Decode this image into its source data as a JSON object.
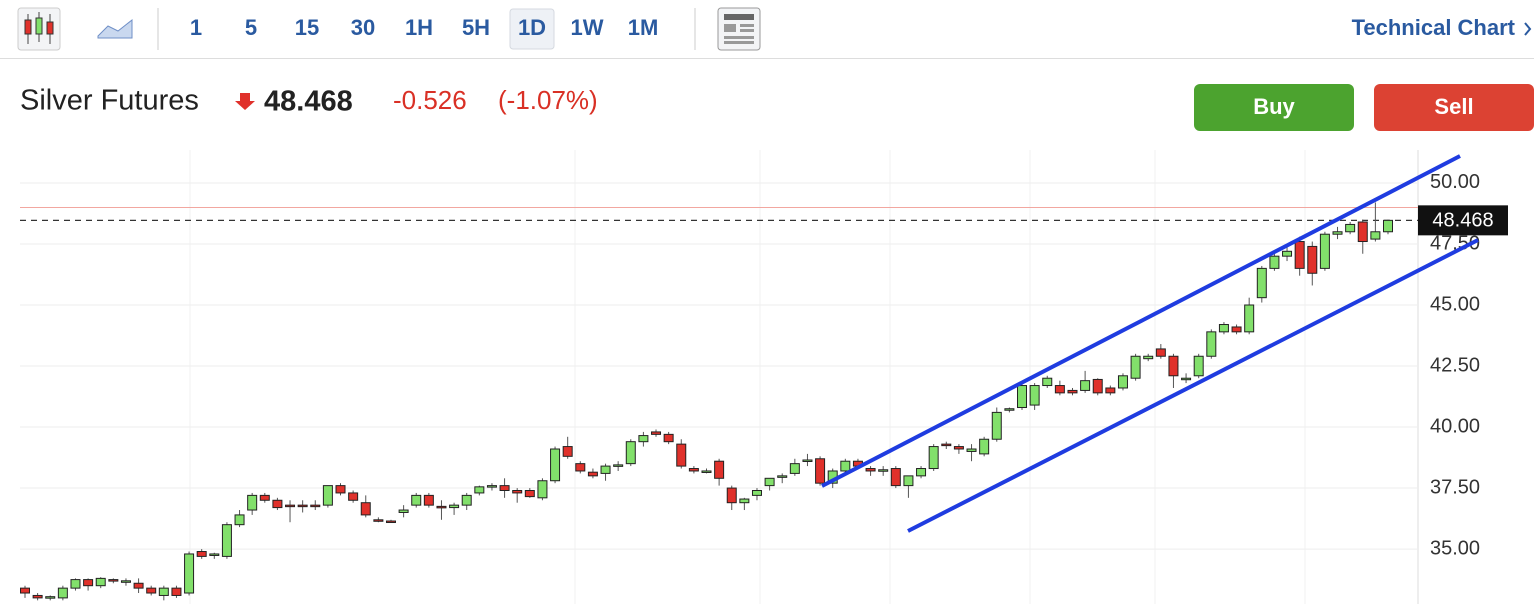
{
  "toolbar": {
    "intervals": [
      "1",
      "5",
      "15",
      "30",
      "1H",
      "5H",
      "1D",
      "1W",
      "1M"
    ],
    "link": "Technical Chart"
  },
  "header": {
    "title": "Silver Futures",
    "price": "48.468",
    "change": "-0.526",
    "change_percent": "(-1.07%)"
  },
  "buttons": {
    "buy": "Buy",
    "sell": "Sell"
  },
  "chart_data": {
    "type": "candlestick",
    "ylim": [
      32.75,
      51.35
    ],
    "yticks": [
      {
        "value": 35,
        "label": "35.00"
      },
      {
        "value": 37.5,
        "label": "37.50"
      },
      {
        "value": 40,
        "label": "40.00"
      },
      {
        "value": 42.5,
        "label": "42.50"
      },
      {
        "value": 45,
        "label": "45.00"
      },
      {
        "value": 47.5,
        "label": "47.50"
      },
      {
        "value": 50,
        "label": "50.00"
      }
    ],
    "grid": true,
    "up_color": "#82e06b",
    "down_color": "#e0312b",
    "last_price": 48.468,
    "previous_close": 48.994,
    "ohlc": [
      [
        33.4,
        33.5,
        33.0,
        33.2
      ],
      [
        33.1,
        33.2,
        32.9,
        33.0
      ],
      [
        33.0,
        33.1,
        32.9,
        33.05
      ],
      [
        33.0,
        33.5,
        32.9,
        33.4
      ],
      [
        33.4,
        33.8,
        33.3,
        33.75
      ],
      [
        33.75,
        33.8,
        33.3,
        33.5
      ],
      [
        33.5,
        33.85,
        33.4,
        33.8
      ],
      [
        33.75,
        33.8,
        33.6,
        33.7
      ],
      [
        33.7,
        33.8,
        33.5,
        33.7
      ],
      [
        33.6,
        33.8,
        33.2,
        33.4
      ],
      [
        33.4,
        33.5,
        33.1,
        33.2
      ],
      [
        33.1,
        33.5,
        32.9,
        33.4
      ],
      [
        33.4,
        33.5,
        33.0,
        33.1
      ],
      [
        33.2,
        34.9,
        33.1,
        34.8
      ],
      [
        34.9,
        35.0,
        34.6,
        34.7
      ],
      [
        34.75,
        34.85,
        34.6,
        34.8
      ],
      [
        34.7,
        36.1,
        34.6,
        36.0
      ],
      [
        36.0,
        36.6,
        35.9,
        36.4
      ],
      [
        36.6,
        37.3,
        36.4,
        37.2
      ],
      [
        37.2,
        37.3,
        36.9,
        37.0
      ],
      [
        37.0,
        37.1,
        36.6,
        36.7
      ],
      [
        36.8,
        37.0,
        36.1,
        36.75
      ],
      [
        36.8,
        37.0,
        36.5,
        36.75
      ],
      [
        36.8,
        37.0,
        36.6,
        36.75
      ],
      [
        36.8,
        37.6,
        36.7,
        37.6
      ],
      [
        37.6,
        37.7,
        37.2,
        37.3
      ],
      [
        37.3,
        37.4,
        36.9,
        37.0
      ],
      [
        36.9,
        37.2,
        36.3,
        36.4
      ],
      [
        36.2,
        36.3,
        36.1,
        36.15
      ],
      [
        36.15,
        36.2,
        36.1,
        36.1
      ],
      [
        36.5,
        36.8,
        36.3,
        36.6
      ],
      [
        36.8,
        37.3,
        36.7,
        37.2
      ],
      [
        37.2,
        37.3,
        36.7,
        36.8
      ],
      [
        36.75,
        37.0,
        36.2,
        36.7
      ],
      [
        36.7,
        36.9,
        36.4,
        36.8
      ],
      [
        36.8,
        37.3,
        36.6,
        37.2
      ],
      [
        37.3,
        37.6,
        37.2,
        37.55
      ],
      [
        37.55,
        37.7,
        37.4,
        37.6
      ],
      [
        37.6,
        37.9,
        37.1,
        37.4
      ],
      [
        37.4,
        37.5,
        36.9,
        37.3
      ],
      [
        37.4,
        37.5,
        37.1,
        37.15
      ],
      [
        37.1,
        37.9,
        37.0,
        37.8
      ],
      [
        37.8,
        39.2,
        37.7,
        39.1
      ],
      [
        39.2,
        39.6,
        38.7,
        38.8
      ],
      [
        38.5,
        38.6,
        38.1,
        38.2
      ],
      [
        38.15,
        38.3,
        37.9,
        38.0
      ],
      [
        38.1,
        38.5,
        37.8,
        38.4
      ],
      [
        38.4,
        38.6,
        38.2,
        38.45
      ],
      [
        38.5,
        39.5,
        38.4,
        39.4
      ],
      [
        39.4,
        39.8,
        39.2,
        39.65
      ],
      [
        39.8,
        39.9,
        39.6,
        39.7
      ],
      [
        39.7,
        39.8,
        39.3,
        39.4
      ],
      [
        39.3,
        39.5,
        38.3,
        38.4
      ],
      [
        38.3,
        38.4,
        38.1,
        38.2
      ],
      [
        38.2,
        38.3,
        38.1,
        38.2
      ],
      [
        38.6,
        38.7,
        37.6,
        37.9
      ],
      [
        37.5,
        37.6,
        36.6,
        36.9
      ],
      [
        36.9,
        37.1,
        36.6,
        37.05
      ],
      [
        37.2,
        37.5,
        37.0,
        37.4
      ],
      [
        37.6,
        37.9,
        37.4,
        37.9
      ],
      [
        37.95,
        38.1,
        37.7,
        38.0
      ],
      [
        38.1,
        38.7,
        38.0,
        38.5
      ],
      [
        38.6,
        38.9,
        38.4,
        38.65
      ],
      [
        38.7,
        38.8,
        37.6,
        37.7
      ],
      [
        37.7,
        38.3,
        37.5,
        38.2
      ],
      [
        38.2,
        38.7,
        38.1,
        38.6
      ],
      [
        38.6,
        38.7,
        38.3,
        38.4
      ],
      [
        38.3,
        38.4,
        38.0,
        38.2
      ],
      [
        38.2,
        38.4,
        38.0,
        38.25
      ],
      [
        38.3,
        38.4,
        37.5,
        37.6
      ],
      [
        37.6,
        38.0,
        37.1,
        38.0
      ],
      [
        38.0,
        38.4,
        37.9,
        38.3
      ],
      [
        38.3,
        39.3,
        38.2,
        39.2
      ],
      [
        39.3,
        39.4,
        39.1,
        39.25
      ],
      [
        39.2,
        39.3,
        38.9,
        39.1
      ],
      [
        39.0,
        39.3,
        38.6,
        39.1
      ],
      [
        38.9,
        39.6,
        38.8,
        39.5
      ],
      [
        39.5,
        40.8,
        39.4,
        40.6
      ],
      [
        40.7,
        40.8,
        40.6,
        40.75
      ],
      [
        40.8,
        41.8,
        40.7,
        41.7
      ],
      [
        40.9,
        41.8,
        40.7,
        41.7
      ],
      [
        41.7,
        42.1,
        41.6,
        42.0
      ],
      [
        41.7,
        41.9,
        41.3,
        41.4
      ],
      [
        41.5,
        41.6,
        41.3,
        41.4
      ],
      [
        41.5,
        42.3,
        41.4,
        41.9
      ],
      [
        41.95,
        42.0,
        41.3,
        41.4
      ],
      [
        41.6,
        41.7,
        41.3,
        41.4
      ],
      [
        41.6,
        42.2,
        41.5,
        42.1
      ],
      [
        42.0,
        43.0,
        41.9,
        42.9
      ],
      [
        42.8,
        43.0,
        42.7,
        42.9
      ],
      [
        43.2,
        43.4,
        42.8,
        42.9
      ],
      [
        42.9,
        43.0,
        41.6,
        42.1
      ],
      [
        42.0,
        42.2,
        41.8,
        42.0
      ],
      [
        42.1,
        43.0,
        42.0,
        42.9
      ],
      [
        42.9,
        44.0,
        42.8,
        43.9
      ],
      [
        43.9,
        44.3,
        43.8,
        44.2
      ],
      [
        44.1,
        44.2,
        43.8,
        43.9
      ],
      [
        43.9,
        45.3,
        43.8,
        45.0
      ],
      [
        45.3,
        46.6,
        45.1,
        46.5
      ],
      [
        46.5,
        47.2,
        46.4,
        47.0
      ],
      [
        47.0,
        47.5,
        46.8,
        47.2
      ],
      [
        47.6,
        47.8,
        46.2,
        46.5
      ],
      [
        47.4,
        47.6,
        45.8,
        46.3
      ],
      [
        46.5,
        48.0,
        46.4,
        47.9
      ],
      [
        47.9,
        48.2,
        47.7,
        48.0
      ],
      [
        48.0,
        48.4,
        47.9,
        48.3
      ],
      [
        48.4,
        48.5,
        47.1,
        47.6
      ],
      [
        47.7,
        49.2,
        47.6,
        48.0
      ],
      [
        48.0,
        48.5,
        47.9,
        48.468
      ]
    ]
  }
}
